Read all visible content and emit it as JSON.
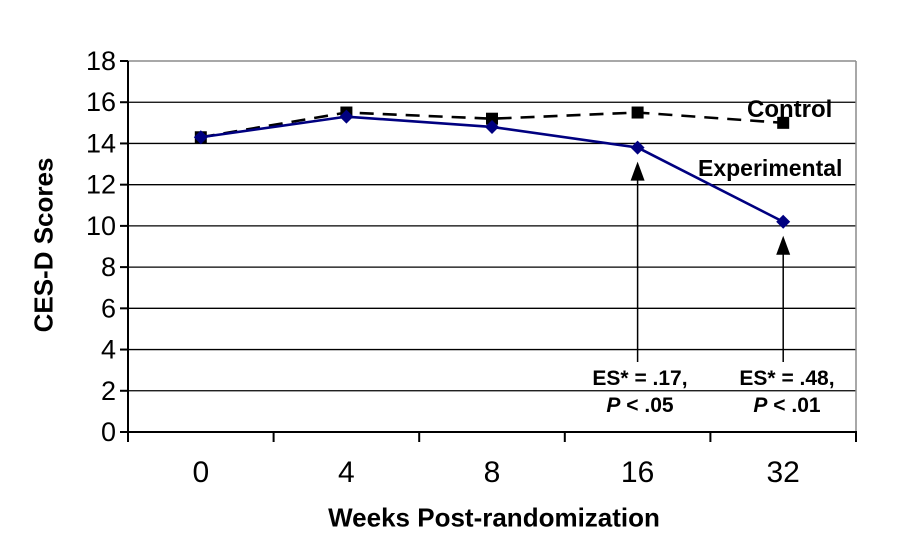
{
  "chart_data": {
    "type": "line",
    "title": "",
    "xlabel": "Weeks Post-randomization",
    "ylabel": "CES-D Scores",
    "categories": [
      "0",
      "4",
      "8",
      "16",
      "32"
    ],
    "yticks": [
      "0",
      "2",
      "4",
      "6",
      "8",
      "10",
      "12",
      "14",
      "16",
      "18"
    ],
    "ylim": [
      0,
      18
    ],
    "grid": "horizontal",
    "legend_position": "inline-labels-right",
    "series": [
      {
        "name": "Control",
        "color": "#000000",
        "line_style": "dashed",
        "marker": "square",
        "values": [
          14.3,
          15.5,
          15.2,
          15.5,
          15.0
        ]
      },
      {
        "name": "Experimental",
        "color": "#000080",
        "line_style": "solid",
        "marker": "diamond",
        "values": [
          14.3,
          15.3,
          14.8,
          13.8,
          10.2
        ]
      }
    ],
    "annotations": [
      {
        "category": "16",
        "series": "Experimental",
        "line1": "ES* = .17,",
        "p_italic": "P",
        "p_rest": " < .05"
      },
      {
        "category": "32",
        "series": "Experimental",
        "line1": "ES* = .48,",
        "p_italic": "P",
        "p_rest": " < .01"
      }
    ]
  },
  "colors": {
    "background": "#ffffff",
    "gridline": "#000000",
    "frame": "#8c8c8c",
    "axis": "#000000",
    "arrow": "#000000",
    "tick_label": "#000000"
  }
}
